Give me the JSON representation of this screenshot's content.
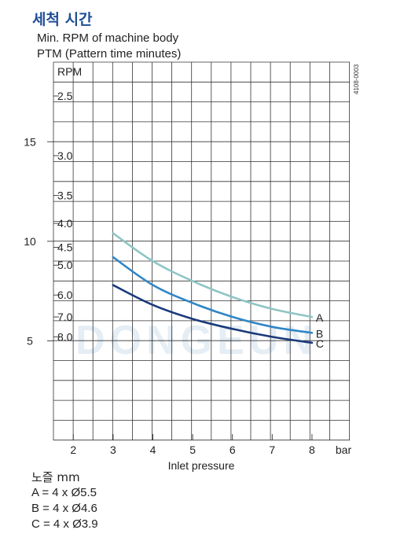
{
  "header": {
    "title": "세척 시간",
    "subtitle_rpm": "Min. RPM of machine body",
    "subtitle_ptm": "PTM (Pattern time minutes)",
    "doc_code": "4108-0003"
  },
  "legend": {
    "nozzle_label": "노즐 mm",
    "items": [
      "A = 4 x Ø5.5",
      "B = 4 x Ø4.6",
      "C = 4 x Ø3.9"
    ]
  },
  "colors": {
    "A": "#8fc5c5",
    "B": "#2f86c6",
    "C": "#1b3a7a",
    "grid": "#333333",
    "watermark": "#dfe9f3"
  },
  "watermark_text": "DONGEUN",
  "chart_data": {
    "type": "line",
    "x": [
      3,
      4,
      5,
      6,
      7,
      8
    ],
    "xlabel": "Inlet pressure",
    "x_unit": "bar",
    "x_ticks": [
      2,
      3,
      4,
      5,
      6,
      7,
      8
    ],
    "xlim": [
      1.5,
      8.95
    ],
    "ylim": [
      0,
      19
    ],
    "rpm_label": "RPM",
    "rpm_ticks": [
      5,
      10,
      15
    ],
    "ptm_ticks": [
      "2.5",
      "3.0",
      "3.5",
      "4.0",
      "4.5",
      "5.0",
      "6.0",
      "7.0",
      "8.0"
    ],
    "ptm_tick_values": [
      17.3,
      14.3,
      12.3,
      10.9,
      9.7,
      8.8,
      7.3,
      6.2,
      5.2
    ],
    "series": [
      {
        "name": "A",
        "values": [
          10.4,
          9.0,
          8.0,
          7.2,
          6.6,
          6.2
        ]
      },
      {
        "name": "B",
        "values": [
          9.2,
          7.8,
          6.9,
          6.2,
          5.7,
          5.4
        ]
      },
      {
        "name": "C",
        "values": [
          7.8,
          6.8,
          6.1,
          5.6,
          5.2,
          4.9
        ]
      }
    ],
    "grid": true
  }
}
